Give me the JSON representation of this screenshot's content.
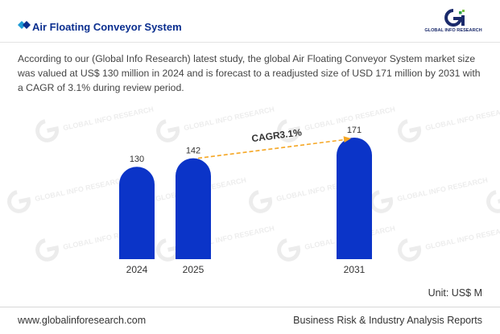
{
  "header": {
    "title": "Air Floating Conveyor System",
    "logo_icon": "gi-logo-icon",
    "logo_text": "GLOBAL INFO RESEARCH",
    "title_icon": "double-diamond-icon"
  },
  "description": "According to our (Global Info Research) latest study, the global Air Floating Conveyor System market size was valued at US$ 130 million in 2024 and is forecast to a readjusted size of USD 171 million by 2031 with a CAGR of 3.1% during review period.",
  "chart_data": {
    "type": "bar",
    "categories": [
      "2024",
      "2025",
      "2031"
    ],
    "values": [
      130,
      142,
      171
    ],
    "annotation": "CAGR3.1%",
    "unit_label": "Unit: US$ M",
    "bar_color": "#0b34c8",
    "arrow_color": "#f5a623",
    "watermark": "GLOBAL INFO RESEARCH"
  },
  "footer": {
    "website": "www.globalinforesearch.com",
    "tagline": "Business Risk & Industry Analysis Reports"
  }
}
